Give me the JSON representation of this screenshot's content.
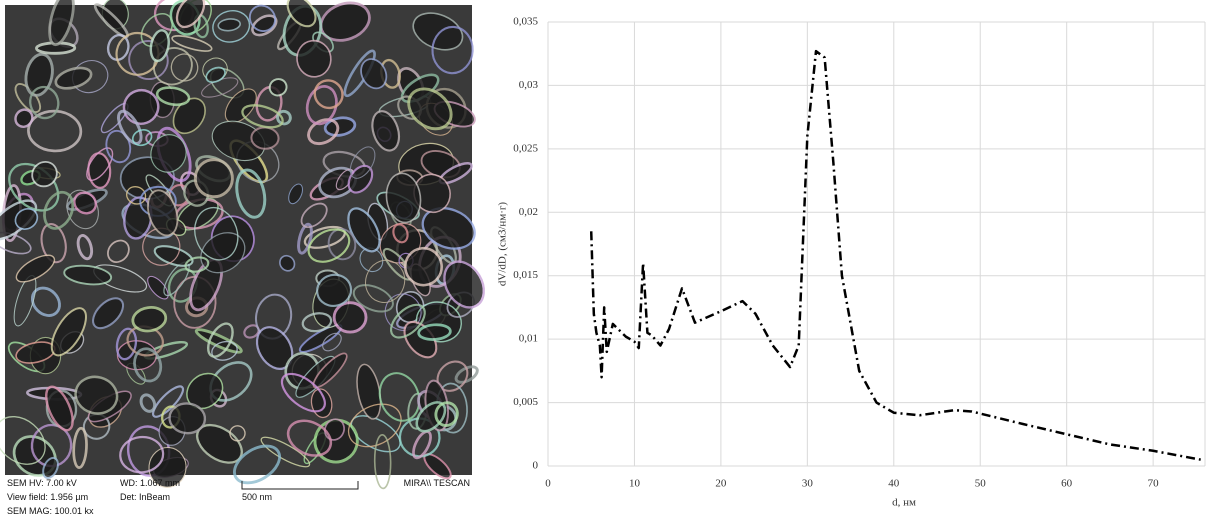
{
  "sem_image": {
    "hv": "SEM HV: 7.00 kV",
    "wd": "WD: 1.067 mm",
    "brand": "MIRA\\\\ TESCAN",
    "view_field": "View field: 1.956 µm",
    "detector": "Det: InBeam",
    "scale": "500 nm",
    "mag": "SEM MAG: 100.01 kx"
  },
  "chart_data": {
    "type": "line",
    "x_label": "d, нм",
    "y_label": "dV/dD, (см3/нм·г)",
    "x": [
      5.0,
      5.3,
      5.6,
      6.0,
      6.2,
      6.5,
      6.8,
      7.5,
      9,
      10,
      10.5,
      11,
      11.5,
      12,
      13,
      14,
      15.5,
      17,
      20,
      22.5,
      24,
      26,
      28,
      29,
      30,
      31,
      32,
      33,
      34,
      36,
      38,
      40,
      43,
      47,
      49,
      55,
      60,
      65,
      70,
      75.5
    ],
    "series": [
      {
        "color": "#000000",
        "values": [
          0.0185,
          0.012,
          0.0105,
          0.0095,
          0.007,
          0.0125,
          0.009,
          0.0112,
          0.0102,
          0.0098,
          0.0093,
          0.016,
          0.0105,
          0.0103,
          0.0095,
          0.0108,
          0.014,
          0.0113,
          0.0122,
          0.013,
          0.012,
          0.0095,
          0.0078,
          0.0095,
          0.026,
          0.0327,
          0.0322,
          0.024,
          0.015,
          0.0075,
          0.005,
          0.0042,
          0.004,
          0.0044,
          0.0043,
          0.0033,
          0.0025,
          0.0017,
          0.0012,
          0.0005
        ]
      }
    ],
    "xlim": [
      0,
      76
    ],
    "xticks": [
      0,
      10,
      20,
      30,
      40,
      50,
      60,
      70
    ],
    "ylim": [
      0,
      0.035
    ],
    "yticks": [
      0,
      {
        "value": 0.005,
        "label": "0,005"
      },
      {
        "value": 0.01,
        "label": "0,01"
      },
      {
        "value": 0.015,
        "label": "0,015"
      },
      {
        "value": 0.02,
        "label": "0,02"
      },
      {
        "value": 0.025,
        "label": "0,025"
      },
      {
        "value": 0.03,
        "label": "0,03"
      },
      {
        "value": 0.035,
        "label": "0,035"
      }
    ],
    "grid": true,
    "line_style": "dash-dot"
  }
}
